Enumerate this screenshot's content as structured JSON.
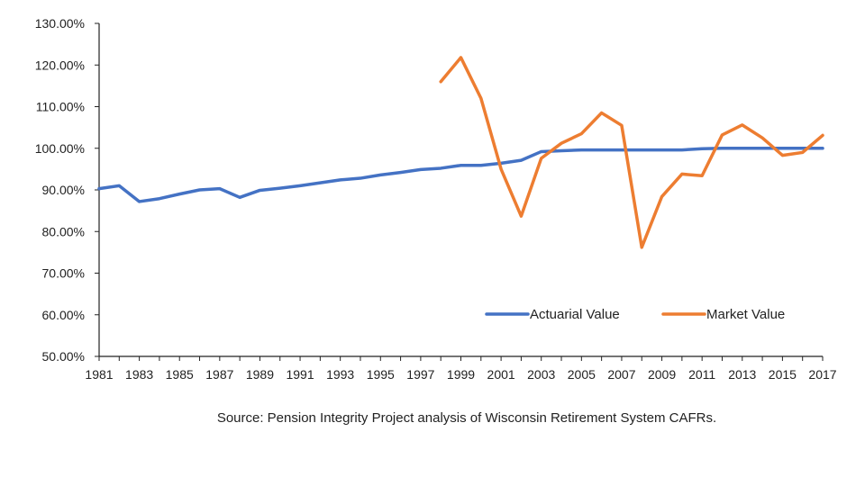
{
  "chart_data": {
    "type": "line",
    "title": "",
    "xlabel": "",
    "ylabel": "",
    "x": [
      1981,
      1982,
      1983,
      1984,
      1985,
      1986,
      1987,
      1988,
      1989,
      1990,
      1991,
      1992,
      1993,
      1994,
      1995,
      1996,
      1997,
      1998,
      1999,
      2000,
      2001,
      2002,
      2003,
      2004,
      2005,
      2006,
      2007,
      2008,
      2009,
      2010,
      2011,
      2012,
      2013,
      2014,
      2015,
      2016,
      2017
    ],
    "xlim": [
      1981,
      2017
    ],
    "ylim": [
      50,
      130
    ],
    "y_ticks": [
      50,
      60,
      70,
      80,
      90,
      100,
      110,
      120,
      130
    ],
    "y_tick_labels": [
      "50.00%",
      "60.00%",
      "70.00%",
      "80.00%",
      "90.00%",
      "100.00%",
      "110.00%",
      "120.00%",
      "130.00%"
    ],
    "x_tick_labels": [
      "1981",
      "1983",
      "1985",
      "1987",
      "1989",
      "1991",
      "1993",
      "1995",
      "1997",
      "1999",
      "2001",
      "2003",
      "2005",
      "2007",
      "2009",
      "2011",
      "2013",
      "2015",
      "2017"
    ],
    "grid": false,
    "legend_position": "bottom-right",
    "series": [
      {
        "name": "Actuarial Value",
        "color": "#4472c4",
        "values": [
          90.3,
          91.0,
          87.2,
          87.9,
          89.0,
          90.0,
          90.3,
          88.2,
          89.9,
          90.4,
          91.0,
          91.7,
          92.4,
          92.8,
          93.6,
          94.2,
          94.9,
          95.2,
          95.9,
          95.9,
          96.4,
          97.1,
          99.2,
          99.4,
          99.6,
          99.6,
          99.6,
          99.6,
          99.6,
          99.6,
          99.9,
          100.0,
          100.0,
          100.0,
          100.0,
          100.0,
          100.0
        ]
      },
      {
        "name": "Market Value",
        "color": "#ed7d31",
        "values": [
          null,
          null,
          null,
          null,
          null,
          null,
          null,
          null,
          null,
          null,
          null,
          null,
          null,
          null,
          null,
          null,
          null,
          116.0,
          121.8,
          112.0,
          95.0,
          83.7,
          97.6,
          101.2,
          103.5,
          108.5,
          105.5,
          76.2,
          88.4,
          93.8,
          93.4,
          103.2,
          105.6,
          102.5,
          98.3,
          99.0,
          103.1
        ]
      }
    ]
  },
  "source_note": "Source: Pension Integrity Project analysis of Wisconsin Retirement System CAFRs."
}
